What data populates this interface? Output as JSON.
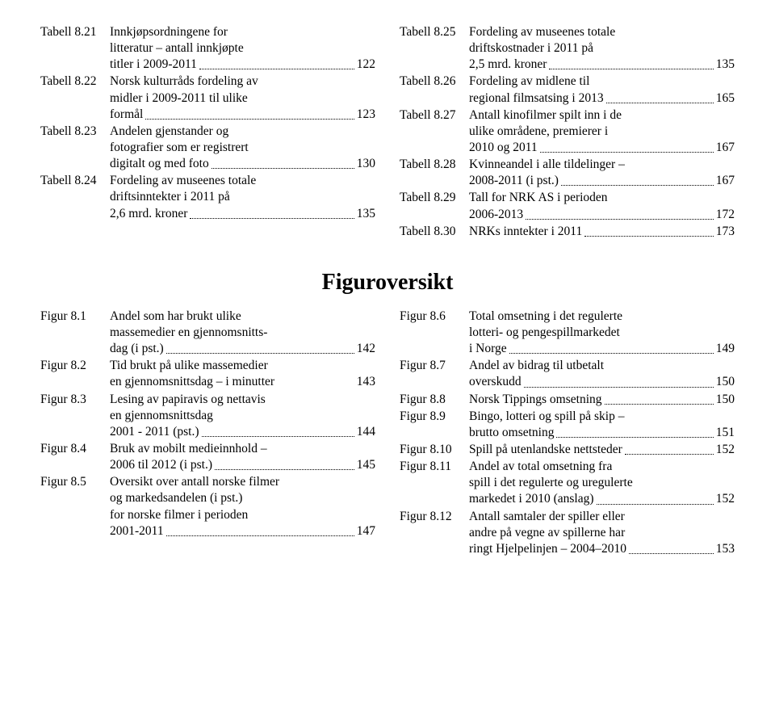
{
  "top": {
    "left": [
      {
        "label": "Tabell 8.21",
        "lines": [
          "Innkjøpsordningene for",
          "litteratur – antall innkjøpte"
        ],
        "last": "titler i 2009-2011",
        "page": "122"
      },
      {
        "label": "Tabell 8.22",
        "lines": [
          "Norsk kulturråds fordeling av",
          "midler i 2009-2011 til ulike"
        ],
        "last": "formål",
        "page": "123"
      },
      {
        "label": "Tabell 8.23",
        "lines": [
          "Andelen gjenstander og",
          "fotografier som er registrert"
        ],
        "last": "digitalt og med foto",
        "page": "130"
      },
      {
        "label": "Tabell 8.24",
        "lines": [
          "Fordeling av museenes totale",
          "driftsinntekter i 2011 på"
        ],
        "last": "2,6 mrd. kroner",
        "page": "135"
      }
    ],
    "right": [
      {
        "label": "Tabell 8.25",
        "lines": [
          "Fordeling av museenes totale",
          "driftskostnader i 2011 på"
        ],
        "last": "2,5 mrd. kroner",
        "page": "135"
      },
      {
        "label": "Tabell 8.26",
        "lines": [
          "Fordeling av midlene til"
        ],
        "last": "regional filmsatsing i 2013",
        "page": "165"
      },
      {
        "label": "Tabell 8.27",
        "lines": [
          "Antall kinofilmer spilt inn i de",
          "ulike områdene, premierer i"
        ],
        "last": "2010 og 2011",
        "page": "167"
      },
      {
        "label": "Tabell 8.28",
        "lines": [
          "Kvinneandel i alle tildelinger –"
        ],
        "last": "2008-2011 (i pst.)",
        "page": "167"
      },
      {
        "label": "Tabell 8.29",
        "lines": [
          "Tall for NRK AS i perioden"
        ],
        "last": "2006-2013",
        "page": "172"
      },
      {
        "label": "Tabell 8.30",
        "lines": [],
        "last": "NRKs inntekter i 2011",
        "page": "173"
      }
    ]
  },
  "heading": "Figuroversikt",
  "bottom": {
    "left": [
      {
        "label": "Figur 8.1",
        "lines": [
          "Andel som har brukt ulike",
          "massemedier en gjennomsnitts-"
        ],
        "last": "dag (i pst.)",
        "page": "142"
      },
      {
        "label": "Figur 8.2",
        "lines": [
          "Tid brukt på ulike massemedier"
        ],
        "last": "en gjennomsnittsdag – i minutter",
        "page": "143",
        "nodots": true
      },
      {
        "label": "Figur 8.3",
        "lines": [
          "Lesing av papiravis og nettavis",
          "en gjennomsnittsdag"
        ],
        "last": "2001 - 2011 (pst.)",
        "page": "144"
      },
      {
        "label": "Figur 8.4",
        "lines": [
          "Bruk av mobilt medieinnhold –"
        ],
        "last": "2006 til 2012 (i pst.)",
        "page": "145"
      },
      {
        "label": "Figur 8.5",
        "lines": [
          "Oversikt over antall norske filmer",
          "og markedsandelen (i pst.)",
          "for norske filmer i perioden"
        ],
        "last": "2001-2011",
        "page": "147"
      }
    ],
    "right": [
      {
        "label": "Figur 8.6",
        "lines": [
          "Total omsetning i det regulerte",
          "lotteri- og pengespillmarkedet"
        ],
        "last": "i Norge",
        "page": "149"
      },
      {
        "label": "Figur 8.7",
        "lines": [
          "Andel av bidrag til utbetalt"
        ],
        "last": "overskudd",
        "page": "150"
      },
      {
        "label": "Figur 8.8",
        "lines": [],
        "last": "Norsk Tippings omsetning",
        "page": "150"
      },
      {
        "label": "Figur 8.9",
        "lines": [
          "Bingo, lotteri og spill på skip –"
        ],
        "last": "brutto omsetning",
        "page": "151"
      },
      {
        "label": "Figur 8.10",
        "lines": [],
        "last": "Spill på utenlandske nettsteder",
        "page": "152"
      },
      {
        "label": "Figur 8.11",
        "lines": [
          "Andel av total omsetning fra",
          "spill i det regulerte og uregulerte"
        ],
        "last": "markedet i 2010 (anslag)",
        "page": "152"
      },
      {
        "label": "Figur 8.12",
        "lines": [
          "Antall samtaler der spiller eller",
          "andre på vegne av spillerne har"
        ],
        "last": "ringt Hjelpelinjen – 2004–2010",
        "page": "153"
      }
    ]
  }
}
